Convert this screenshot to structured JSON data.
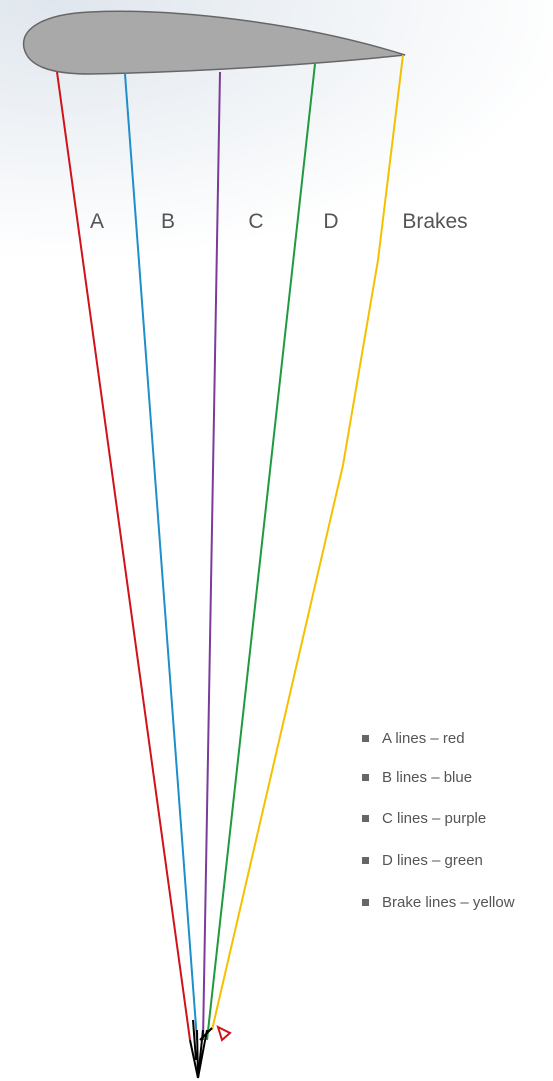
{
  "line_labels": [
    "A",
    "B",
    "C",
    "D",
    "Brakes"
  ],
  "legend": [
    "A lines – red",
    "B lines – blue",
    "C lines – purple",
    "D lines – green",
    "Brake lines – yellow"
  ]
}
